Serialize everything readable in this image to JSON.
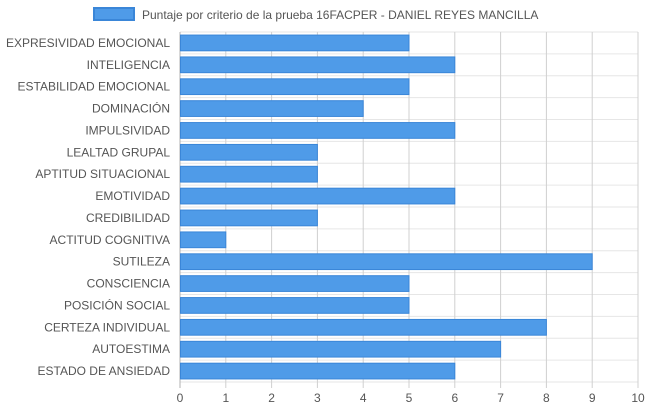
{
  "chart_data": {
    "type": "bar",
    "orientation": "horizontal",
    "categories": [
      "EXPRESIVIDAD EMOCIONAL",
      "INTELIGENCIA",
      "ESTABILIDAD EMOCIONAL",
      "DOMINACIÓN",
      "IMPULSIVIDAD",
      "LEALTAD GRUPAL",
      "APTITUD SITUACIONAL",
      "EMOTIVIDAD",
      "CREDIBILIDAD",
      "ACTITUD COGNITIVA",
      "SUTILEZA",
      "CONSCIENCIA",
      "POSICIÓN SOCIAL",
      "CERTEZA INDIVIDUAL",
      "AUTOESTIMA",
      "ESTADO DE ANSIEDAD"
    ],
    "series": [
      {
        "name": "Puntaje por criterio de la prueba 16FACPER - DANIEL REYES MANCILLA",
        "values": [
          5,
          6,
          5,
          4,
          6,
          3,
          3,
          6,
          3,
          1,
          9,
          5,
          5,
          8,
          7,
          6
        ],
        "color": "#4f9be8",
        "border_color": "#3a86d8"
      }
    ],
    "xlim": [
      0,
      10
    ],
    "x_ticks": [
      "0",
      "1",
      "2",
      "3",
      "4",
      "5",
      "6",
      "7",
      "8",
      "9",
      "10"
    ],
    "grid": true,
    "legend_position": "top"
  }
}
